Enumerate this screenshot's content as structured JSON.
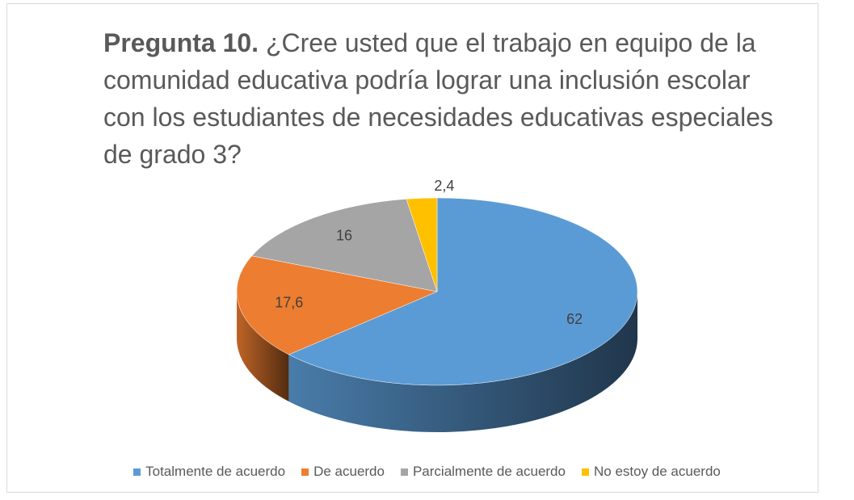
{
  "chart_data": {
    "type": "pie",
    "title": {
      "bold": "Pregunta 10.",
      "text": "¿Cree usted que el trabajo en equipo de la comunidad educativa podría lograr una inclusión escolar con los estudiantes de necesidades educativas especiales de grado 3?"
    },
    "categories": [
      "Totalmente de acuerdo",
      "De acuerdo",
      "Parcialmente de acuerdo",
      "No estoy de acuerdo"
    ],
    "values": [
      62,
      17.6,
      16,
      2.4
    ],
    "value_labels": [
      "62",
      "17,6",
      "16",
      "2,4"
    ],
    "colors": [
      "#5b9bd5",
      "#ed7d31",
      "#a5a5a5",
      "#ffc000"
    ],
    "legend": "bottom"
  }
}
